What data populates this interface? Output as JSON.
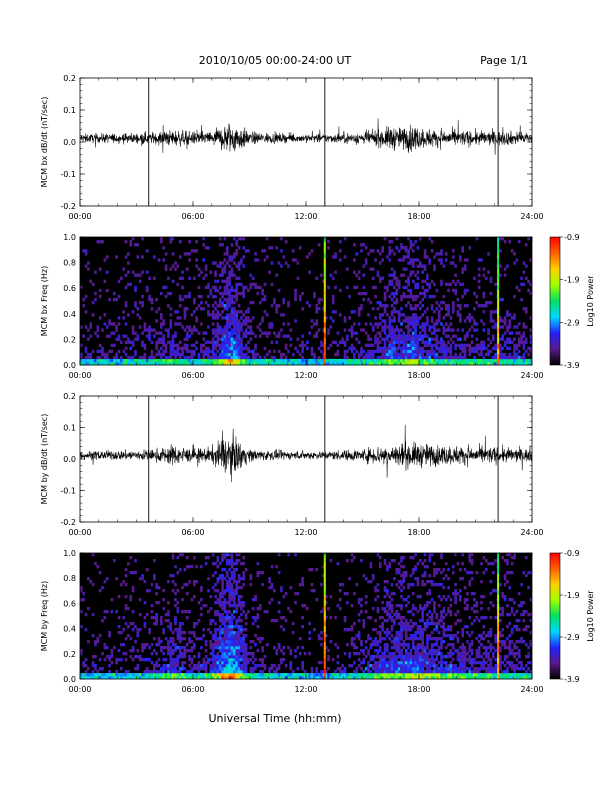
{
  "header": {
    "title": "2010/10/05  00:00-24:00 UT",
    "page": "Page 1/1"
  },
  "xlabel": "Universal Time (hh:mm)",
  "colors": {
    "trace": "#000000",
    "spectrogram_background": "#000000",
    "colorscale": [
      "#000000",
      "#5a1a8a",
      "#2222ff",
      "#00d8ff",
      "#00e060",
      "#a0ff00",
      "#ffd000",
      "#ff6000",
      "#ff0000"
    ]
  },
  "chart_data": [
    {
      "type": "line",
      "panel": "bx-timeseries",
      "ylabel": "MCM bx dB/dt (nT/sec)",
      "xlim": [
        0,
        24
      ],
      "x_ticks": [
        "00:00",
        "06:00",
        "12:00",
        "18:00",
        "24:00"
      ],
      "ylim": [
        -0.2,
        0.2
      ],
      "y_ticks": [
        "0.2",
        "0.1",
        "0.0",
        "-0.1",
        "-0.2"
      ],
      "activity_envelope": [
        [
          0,
          0.02
        ],
        [
          3,
          0.025
        ],
        [
          4,
          0.03
        ],
        [
          5,
          0.04
        ],
        [
          6,
          0.03
        ],
        [
          7,
          0.035
        ],
        [
          7.5,
          0.06
        ],
        [
          8,
          0.08
        ],
        [
          8.5,
          0.06
        ],
        [
          9,
          0.03
        ],
        [
          11,
          0.02
        ],
        [
          13,
          0.02
        ],
        [
          15,
          0.03
        ],
        [
          16,
          0.04
        ],
        [
          16.5,
          0.06
        ],
        [
          17,
          0.05
        ],
        [
          17.7,
          0.07
        ],
        [
          18,
          0.05
        ],
        [
          19,
          0.04
        ],
        [
          21,
          0.035
        ],
        [
          22,
          0.035
        ],
        [
          24,
          0.03
        ]
      ],
      "spikes": [
        {
          "x": 3.65,
          "ymin": -0.2,
          "ymax": 0.2
        },
        {
          "x": 13.0,
          "ymin": -0.2,
          "ymax": 0.2
        },
        {
          "x": 22.2,
          "ymin": -0.2,
          "ymax": 0.2
        }
      ]
    },
    {
      "type": "heatmap",
      "panel": "bx-spectrogram",
      "ylabel": "MCM bx Freq (Hz)",
      "xlim": [
        0,
        24
      ],
      "x_ticks": [
        "00:00",
        "06:00",
        "12:00",
        "18:00",
        "24:00"
      ],
      "ylim": [
        0,
        1.0
      ],
      "y_ticks": [
        "1.0",
        "0.8",
        "0.6",
        "0.4",
        "0.2",
        "0.0"
      ],
      "colorbar": {
        "label": "Log10 Power",
        "range": [
          -3.9,
          -0.9
        ],
        "ticks": [
          "-0.9",
          "-1.9",
          "-2.9",
          "-3.9"
        ]
      },
      "broadband_lines": [
        {
          "x": 13.0,
          "power": -0.9
        },
        {
          "x": 22.2,
          "power": -1.4
        }
      ]
    },
    {
      "type": "line",
      "panel": "by-timeseries",
      "ylabel": "MCM by dB/dt (nT/sec)",
      "xlim": [
        0,
        24
      ],
      "x_ticks": [
        "00:00",
        "06:00",
        "12:00",
        "18:00",
        "24:00"
      ],
      "ylim": [
        -0.2,
        0.2
      ],
      "y_ticks": [
        "0.2",
        "0.1",
        "0.0",
        "-0.1",
        "-0.2"
      ],
      "activity_envelope": [
        [
          0,
          0.02
        ],
        [
          3,
          0.025
        ],
        [
          4,
          0.03
        ],
        [
          5,
          0.05
        ],
        [
          6,
          0.03
        ],
        [
          7,
          0.04
        ],
        [
          7.5,
          0.08
        ],
        [
          8,
          0.1
        ],
        [
          8.5,
          0.07
        ],
        [
          9,
          0.03
        ],
        [
          11,
          0.02
        ],
        [
          13,
          0.02
        ],
        [
          15,
          0.03
        ],
        [
          16,
          0.05
        ],
        [
          17,
          0.06
        ],
        [
          18,
          0.06
        ],
        [
          19,
          0.05
        ],
        [
          21,
          0.04
        ],
        [
          22,
          0.04
        ],
        [
          24,
          0.03
        ]
      ],
      "spikes": [
        {
          "x": 3.65,
          "ymin": -0.2,
          "ymax": 0.2
        },
        {
          "x": 13.0,
          "ymin": -0.2,
          "ymax": 0.2
        },
        {
          "x": 22.2,
          "ymin": -0.2,
          "ymax": 0.2
        }
      ]
    },
    {
      "type": "heatmap",
      "panel": "by-spectrogram",
      "ylabel": "MCM by Freq (Hz)",
      "xlim": [
        0,
        24
      ],
      "x_ticks": [
        "00:00",
        "06:00",
        "12:00",
        "18:00",
        "24:00"
      ],
      "ylim": [
        0,
        1.0
      ],
      "y_ticks": [
        "1.0",
        "0.8",
        "0.6",
        "0.4",
        "0.2",
        "0.0"
      ],
      "colorbar": {
        "label": "Log10 Power",
        "range": [
          -3.9,
          -0.9
        ],
        "ticks": [
          "-0.9",
          "-1.9",
          "-2.9",
          "-3.9"
        ]
      },
      "broadband_lines": [
        {
          "x": 13.0,
          "power": -0.9
        },
        {
          "x": 22.2,
          "power": -1.2
        }
      ]
    }
  ]
}
